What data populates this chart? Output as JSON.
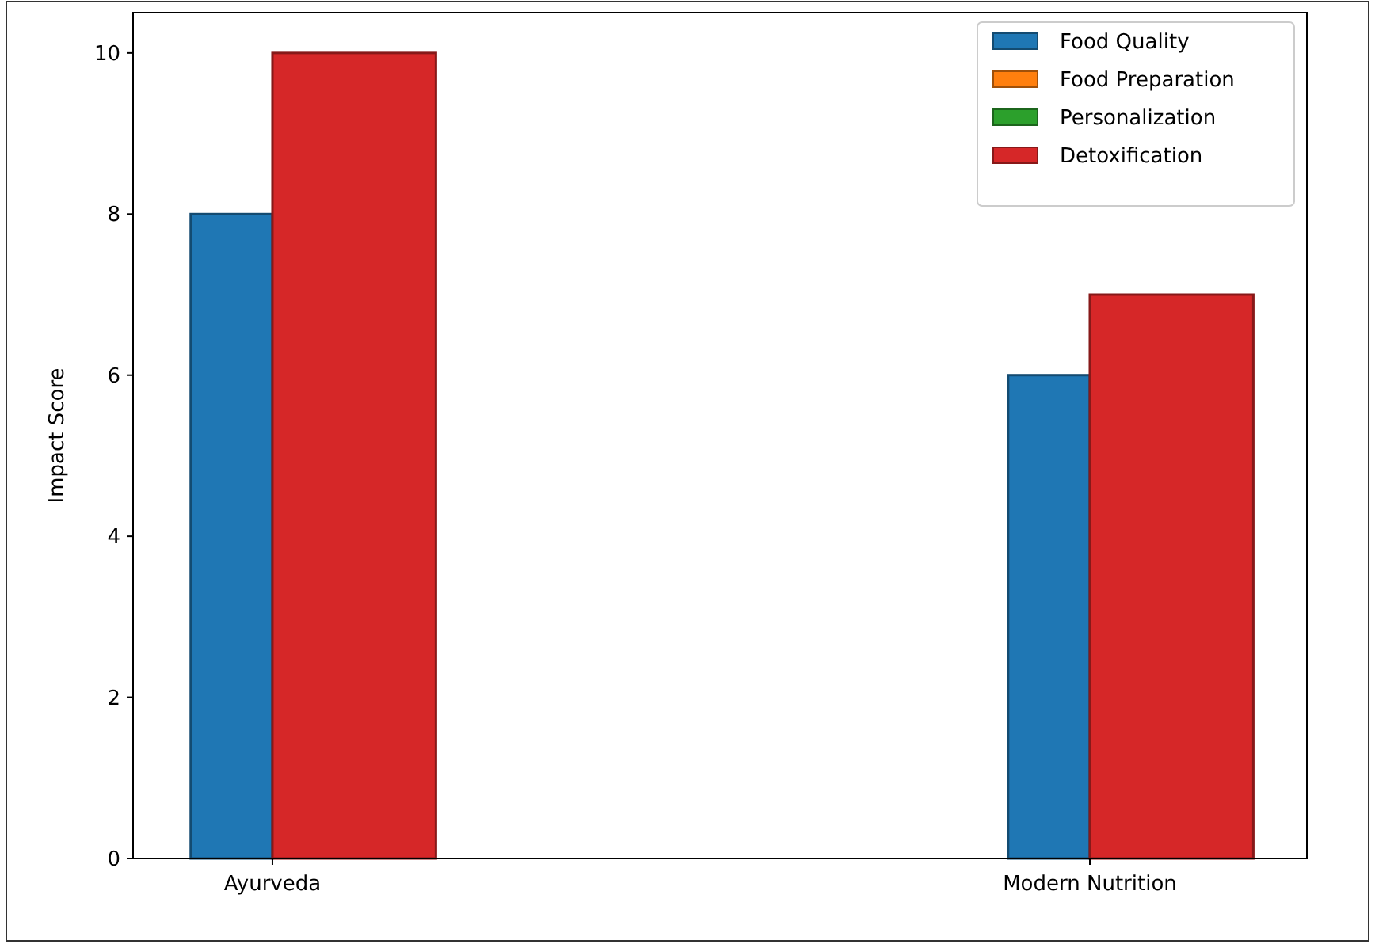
{
  "chart_data": {
    "type": "bar",
    "ylabel": "Impact Score",
    "categories": [
      "Ayurveda",
      "Modern Nutrition"
    ],
    "series": [
      {
        "name": "Food Quality",
        "color": "#1f77b4",
        "values": [
          8,
          6
        ]
      },
      {
        "name": "Food Preparation",
        "color": "#ff7f0e",
        "values": [
          null,
          null
        ]
      },
      {
        "name": "Personalization",
        "color": "#2ca02c",
        "values": [
          null,
          null
        ]
      },
      {
        "name": "Detoxification",
        "color": "#d62728",
        "values": [
          10,
          7
        ]
      }
    ],
    "ylim": [
      0,
      10.5
    ],
    "yticks": [
      0,
      2,
      4,
      6,
      8,
      10
    ],
    "legend": "top right",
    "grid": false
  }
}
